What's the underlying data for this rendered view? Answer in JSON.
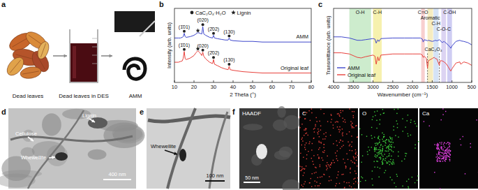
{
  "panels": {
    "a": {
      "letter": "a",
      "labels": [
        "Dead leaves",
        "Dead leaves in DES",
        "AMM"
      ]
    },
    "d": {
      "letter": "d",
      "labels": [
        "Lignin",
        "Cellulose",
        "Whewellite"
      ],
      "scale_bar": "400 nm"
    },
    "e": {
      "letter": "e",
      "labels": [
        "Whewellite"
      ],
      "scale_bar": "100 nm"
    },
    "f": {
      "letter": "f",
      "maps": [
        "HAADF",
        "C",
        "O",
        "Ca"
      ],
      "scale_bar": "50 nm"
    }
  },
  "chart_data": [
    {
      "type": "line",
      "title": "b",
      "xlabel": "2 Theta (°)",
      "ylabel": "Intensity (arb. units)",
      "xlim": [
        10,
        80
      ],
      "xticks": [
        10,
        20,
        30,
        40,
        50,
        60,
        70,
        80
      ],
      "ylim": [
        0,
        110
      ],
      "tick_labels": "x",
      "marker_legend": [
        {
          "marker": "circle",
          "text": "CaC₂O₄·H₂O"
        },
        {
          "marker": "star",
          "text": "Lignin"
        }
      ],
      "series": [
        {
          "name": "AMM",
          "color": "#3f48cc",
          "x": [
            10,
            12,
            13,
            14,
            14.5,
            15,
            15.5,
            16,
            18,
            20,
            21,
            22,
            23,
            24,
            24.5,
            25,
            26,
            28,
            29.5,
            30,
            30.5,
            32,
            34,
            36,
            37.5,
            38,
            38.5,
            40,
            45,
            50,
            55,
            60,
            65,
            70,
            75,
            80
          ],
          "values": [
            66,
            66,
            66,
            67,
            68,
            73,
            68,
            67,
            68,
            70,
            72,
            74,
            73,
            72,
            83,
            72,
            70,
            67,
            66,
            70,
            66,
            65,
            64,
            63,
            63,
            66,
            63,
            62,
            61,
            61,
            60,
            60,
            60,
            60,
            60,
            60
          ]
        },
        {
          "name": "Original leaf",
          "color": "#e8413c",
          "x": [
            10,
            12,
            13,
            14,
            14.5,
            15,
            15.5,
            16,
            18,
            20,
            21,
            22,
            23,
            24,
            24.5,
            25,
            26,
            28,
            29.5,
            30,
            30.5,
            32,
            34,
            36,
            37.5,
            38,
            38.5,
            40,
            45,
            50,
            55,
            60,
            65,
            70,
            75,
            80
          ],
          "values": [
            30,
            30,
            31,
            32,
            36,
            46,
            35,
            34,
            36,
            40,
            44,
            47,
            44,
            40,
            45,
            39,
            35,
            30,
            28,
            34,
            27,
            25,
            22,
            20,
            19,
            24,
            19,
            18,
            16,
            15,
            14,
            14,
            14,
            14,
            14,
            14
          ]
        }
      ],
      "annotations": [
        {
          "text": "(1̄01)",
          "x": 15,
          "y": 76,
          "marker": "circle"
        },
        {
          "x": 22,
          "y": 77,
          "marker": "star"
        },
        {
          "text": "(020)",
          "x": 24.5,
          "y": 86,
          "marker": "circle"
        },
        {
          "text": "(2̄02)",
          "x": 30,
          "y": 73,
          "marker": "circle"
        },
        {
          "text": "(130)",
          "x": 38,
          "y": 69,
          "marker": "circle"
        },
        {
          "text": "(1̄01)",
          "x": 15,
          "y": 49,
          "marker": "circle"
        },
        {
          "x": 22,
          "y": 50,
          "marker": "star"
        },
        {
          "text": "(020)",
          "x": 24.5,
          "y": 48,
          "marker": "circle"
        },
        {
          "text": "(2̄02)",
          "x": 30,
          "y": 37,
          "marker": "circle"
        },
        {
          "text": "(130)",
          "x": 38,
          "y": 27,
          "marker": "circle"
        }
      ]
    },
    {
      "type": "line",
      "title": "c",
      "xlabel": "Wavenumber (cm⁻¹)",
      "ylabel": "Transmittance (arb. units)",
      "xlim": [
        4000,
        500
      ],
      "xticks": [
        4000,
        3500,
        3000,
        2500,
        2000,
        1500,
        1000,
        500
      ],
      "ylim": [
        0,
        130
      ],
      "tick_labels": "x",
      "legend": "lower left",
      "bands": [
        {
          "text": "O-H",
          "x0": 3600,
          "x1": 3050,
          "color": "#cdeccd"
        },
        {
          "text": "C-H",
          "x0": 3000,
          "x1": 2780,
          "color": "#f6f1ae"
        },
        {
          "text": "C=O",
          "x0": 1780,
          "x1": 1690,
          "color": "#f8cfcf"
        },
        {
          "text": "Aromatic",
          "x0": 1620,
          "x1": 1480,
          "color": "#f6ecc0"
        },
        {
          "text": "C-H",
          "x0": 1470,
          "x1": 1340,
          "color": "#d5e3f6"
        },
        {
          "text": "C-O-C",
          "x0": 1270,
          "x1": 1150,
          "color": "#dcd4f2"
        },
        {
          "text": "C-OH",
          "x0": 1120,
          "x1": 1000,
          "color": "#cfcdf3"
        }
      ],
      "reference_lines": {
        "text": "CaC₂O₄",
        "x": [
          1620,
          1320
        ]
      },
      "series": [
        {
          "name": "AMM",
          "color": "#3f48cc",
          "x": [
            4000,
            3800,
            3600,
            3400,
            3300,
            3200,
            3000,
            2950,
            2920,
            2880,
            2850,
            2800,
            2500,
            2200,
            2000,
            1800,
            1750,
            1730,
            1700,
            1650,
            1620,
            1600,
            1500,
            1450,
            1420,
            1380,
            1320,
            1300,
            1250,
            1200,
            1150,
            1100,
            1050,
            1030,
            1000,
            900,
            800,
            780,
            700,
            600,
            500
          ],
          "values": [
            80,
            80,
            78,
            74,
            74,
            75,
            77,
            76,
            69,
            75,
            72,
            77,
            78,
            78,
            78,
            78,
            76,
            71,
            75,
            74,
            73,
            74,
            72,
            73,
            74,
            73,
            75,
            74,
            70,
            72,
            69,
            66,
            62,
            60,
            64,
            72,
            74,
            73,
            72,
            70,
            66
          ]
        },
        {
          "name": "Original leaf",
          "color": "#e8413c",
          "x": [
            4000,
            3800,
            3600,
            3400,
            3300,
            3200,
            3000,
            2950,
            2920,
            2880,
            2850,
            2800,
            2500,
            2200,
            2000,
            1800,
            1750,
            1730,
            1700,
            1650,
            1620,
            1600,
            1500,
            1450,
            1420,
            1380,
            1320,
            1300,
            1250,
            1200,
            1150,
            1100,
            1050,
            1030,
            1000,
            900,
            800,
            780,
            700,
            600,
            500
          ],
          "values": [
            52,
            52,
            50,
            44,
            43,
            45,
            48,
            46,
            32,
            45,
            38,
            48,
            50,
            50,
            50,
            50,
            48,
            44,
            46,
            42,
            25,
            38,
            42,
            44,
            42,
            41,
            30,
            38,
            38,
            36,
            33,
            28,
            22,
            20,
            24,
            34,
            36,
            32,
            36,
            34,
            30
          ]
        }
      ]
    }
  ]
}
